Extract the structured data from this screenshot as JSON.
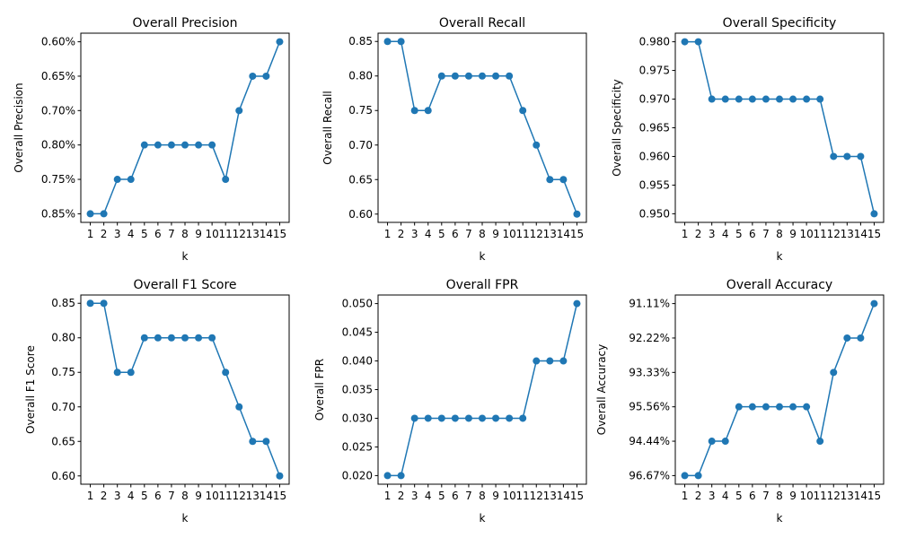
{
  "figure": {
    "background": "#ffffff",
    "series_color": "#1f77b4"
  },
  "chart_data": [
    {
      "type": "line",
      "title": "Overall Precision",
      "xlabel": "k",
      "ylabel": "Overall Precision",
      "x": [
        1,
        2,
        3,
        4,
        5,
        6,
        7,
        8,
        9,
        10,
        11,
        12,
        13,
        14,
        15
      ],
      "x_tick_labels": [
        "1",
        "2",
        "3",
        "4",
        "5",
        "6",
        "7",
        "8",
        "9",
        "10",
        "11",
        "12",
        "13",
        "14",
        "15"
      ],
      "y_axis": "categorical",
      "y_categories": [
        "0.85%",
        "0.75%",
        "0.80%",
        "0.70%",
        "0.65%",
        "0.60%"
      ],
      "values": [
        "0.85%",
        "0.85%",
        "0.75%",
        "0.75%",
        "0.80%",
        "0.80%",
        "0.80%",
        "0.80%",
        "0.80%",
        "0.80%",
        "0.75%",
        "0.70%",
        "0.65%",
        "0.65%",
        "0.60%"
      ],
      "marker": "circle",
      "grid": false
    },
    {
      "type": "line",
      "title": "Overall Recall",
      "xlabel": "k",
      "ylabel": "Overall Recall",
      "x": [
        1,
        2,
        3,
        4,
        5,
        6,
        7,
        8,
        9,
        10,
        11,
        12,
        13,
        14,
        15
      ],
      "x_tick_labels": [
        "1",
        "2",
        "3",
        "4",
        "5",
        "6",
        "7",
        "8",
        "9",
        "10",
        "11",
        "12",
        "13",
        "14",
        "15"
      ],
      "y_axis": "numeric",
      "y_ticks": [
        0.6,
        0.65,
        0.7,
        0.75,
        0.8,
        0.85
      ],
      "y_tick_labels": [
        "0.60",
        "0.65",
        "0.70",
        "0.75",
        "0.80",
        "0.85"
      ],
      "ylim": [
        0.588,
        0.862
      ],
      "values": [
        0.85,
        0.85,
        0.75,
        0.75,
        0.8,
        0.8,
        0.8,
        0.8,
        0.8,
        0.8,
        0.75,
        0.7,
        0.65,
        0.65,
        0.6
      ],
      "marker": "circle",
      "grid": false
    },
    {
      "type": "line",
      "title": "Overall Specificity",
      "xlabel": "k",
      "ylabel": "Overall Specificity",
      "x": [
        1,
        2,
        3,
        4,
        5,
        6,
        7,
        8,
        9,
        10,
        11,
        12,
        13,
        14,
        15
      ],
      "x_tick_labels": [
        "1",
        "2",
        "3",
        "4",
        "5",
        "6",
        "7",
        "8",
        "9",
        "10",
        "11",
        "12",
        "13",
        "14",
        "15"
      ],
      "y_axis": "numeric",
      "y_ticks": [
        0.95,
        0.955,
        0.96,
        0.965,
        0.97,
        0.975,
        0.98
      ],
      "y_tick_labels": [
        "0.950",
        "0.955",
        "0.960",
        "0.965",
        "0.970",
        "0.975",
        "0.980"
      ],
      "ylim": [
        0.9485,
        0.9815
      ],
      "values": [
        0.98,
        0.98,
        0.97,
        0.97,
        0.97,
        0.97,
        0.97,
        0.97,
        0.97,
        0.97,
        0.97,
        0.96,
        0.96,
        0.96,
        0.95
      ],
      "marker": "circle",
      "grid": false
    },
    {
      "type": "line",
      "title": "Overall F1 Score",
      "xlabel": "k",
      "ylabel": "Overall F1 Score",
      "x": [
        1,
        2,
        3,
        4,
        5,
        6,
        7,
        8,
        9,
        10,
        11,
        12,
        13,
        14,
        15
      ],
      "x_tick_labels": [
        "1",
        "2",
        "3",
        "4",
        "5",
        "6",
        "7",
        "8",
        "9",
        "10",
        "11",
        "12",
        "13",
        "14",
        "15"
      ],
      "y_axis": "numeric",
      "y_ticks": [
        0.6,
        0.65,
        0.7,
        0.75,
        0.8,
        0.85
      ],
      "y_tick_labels": [
        "0.60",
        "0.65",
        "0.70",
        "0.75",
        "0.80",
        "0.85"
      ],
      "ylim": [
        0.588,
        0.862
      ],
      "values": [
        0.85,
        0.85,
        0.75,
        0.75,
        0.8,
        0.8,
        0.8,
        0.8,
        0.8,
        0.8,
        0.75,
        0.7,
        0.65,
        0.65,
        0.6
      ],
      "marker": "circle",
      "grid": false
    },
    {
      "type": "line",
      "title": "Overall FPR",
      "xlabel": "k",
      "ylabel": "Overall FPR",
      "x": [
        1,
        2,
        3,
        4,
        5,
        6,
        7,
        8,
        9,
        10,
        11,
        12,
        13,
        14,
        15
      ],
      "x_tick_labels": [
        "1",
        "2",
        "3",
        "4",
        "5",
        "6",
        "7",
        "8",
        "9",
        "10",
        "11",
        "12",
        "13",
        "14",
        "15"
      ],
      "y_axis": "numeric",
      "y_ticks": [
        0.02,
        0.025,
        0.03,
        0.035,
        0.04,
        0.045,
        0.05
      ],
      "y_tick_labels": [
        "0.020",
        "0.025",
        "0.030",
        "0.035",
        "0.040",
        "0.045",
        "0.050"
      ],
      "ylim": [
        0.0185,
        0.0515
      ],
      "values": [
        0.02,
        0.02,
        0.03,
        0.03,
        0.03,
        0.03,
        0.03,
        0.03,
        0.03,
        0.03,
        0.03,
        0.04,
        0.04,
        0.04,
        0.05
      ],
      "marker": "circle",
      "grid": false
    },
    {
      "type": "line",
      "title": "Overall Accuracy",
      "xlabel": "k",
      "ylabel": "Overall Accuracy",
      "x": [
        1,
        2,
        3,
        4,
        5,
        6,
        7,
        8,
        9,
        10,
        11,
        12,
        13,
        14,
        15
      ],
      "x_tick_labels": [
        "1",
        "2",
        "3",
        "4",
        "5",
        "6",
        "7",
        "8",
        "9",
        "10",
        "11",
        "12",
        "13",
        "14",
        "15"
      ],
      "y_axis": "categorical",
      "y_categories": [
        "96.67%",
        "94.44%",
        "95.56%",
        "93.33%",
        "92.22%",
        "91.11%"
      ],
      "values": [
        "96.67%",
        "96.67%",
        "94.44%",
        "94.44%",
        "95.56%",
        "95.56%",
        "95.56%",
        "95.56%",
        "95.56%",
        "95.56%",
        "94.44%",
        "93.33%",
        "92.22%",
        "92.22%",
        "91.11%"
      ],
      "marker": "circle",
      "grid": false
    }
  ]
}
